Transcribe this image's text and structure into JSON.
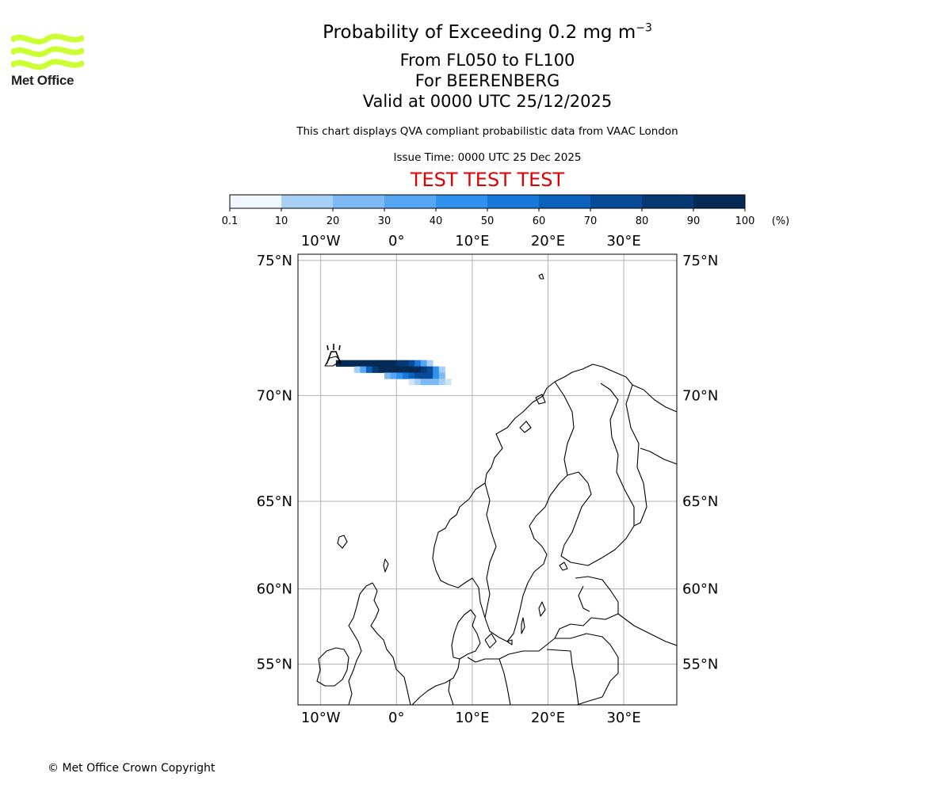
{
  "header": {
    "title_prefix": "Probability of Exceeding 0.2 mg m",
    "title_exponent": "−3",
    "level_range": "From FL050 to FL100",
    "volcano": "For BEERENBERG",
    "valid_time": "Valid at 0000 UTC 25/12/2025",
    "subtitle": "This chart displays QVA compliant probabilistic data from VAAC London",
    "issue_time": "Issue Time: 0000 UTC 25 Dec 2025",
    "test_banner": "TEST TEST TEST"
  },
  "logo": {
    "text": "Met Office",
    "color": "#ccff33"
  },
  "footer": {
    "copyright": "© Met Office Crown Copyright"
  },
  "colorbar": {
    "unit": "(%)",
    "ticks": [
      "0.1",
      "10",
      "20",
      "30",
      "40",
      "50",
      "60",
      "70",
      "80",
      "90",
      "100"
    ],
    "colors": [
      "#f1f7fe",
      "#cde4fa",
      "#a8d0f7",
      "#7dbaf3",
      "#55a6f0",
      "#2e92ee",
      "#1679d9",
      "#0b62bd",
      "#084b99",
      "#063873",
      "#052a55"
    ]
  },
  "map": {
    "lon_labels": [
      "10°W",
      "0°",
      "10°E",
      "20°E",
      "30°E"
    ],
    "lat_labels": [
      "75°N",
      "70°N",
      "65°N",
      "60°N",
      "55°N"
    ],
    "lons": [
      -10,
      0,
      10,
      20,
      30
    ],
    "lats": [
      75,
      70,
      65,
      60,
      55
    ],
    "extent": {
      "lon_min": -13,
      "lon_max": 37,
      "lat_min": 52,
      "lat_max": 75.2
    },
    "gridline_color": "#b0b0b0"
  },
  "chart_data": {
    "type": "heatmap",
    "title": "Probability of Exceeding 0.2 mg m−3",
    "subtitle": "From FL050 to FL100",
    "volcano": "BEERENBERG",
    "volcano_location": {
      "lon": -8.2,
      "lat": 71.0
    },
    "units": "%",
    "color_levels": [
      0.1,
      10,
      20,
      30,
      40,
      50,
      60,
      70,
      80,
      90,
      100
    ],
    "plume_cells": [
      {
        "lon": -8.0,
        "lat": 71.2,
        "prob": 95
      },
      {
        "lon": -7.2,
        "lat": 71.2,
        "prob": 95
      },
      {
        "lon": -6.4,
        "lat": 71.2,
        "prob": 95
      },
      {
        "lon": -5.6,
        "lat": 71.2,
        "prob": 95
      },
      {
        "lon": -4.8,
        "lat": 71.2,
        "prob": 92
      },
      {
        "lon": -4.0,
        "lat": 71.2,
        "prob": 92
      },
      {
        "lon": -3.2,
        "lat": 71.2,
        "prob": 92
      },
      {
        "lon": -2.4,
        "lat": 71.2,
        "prob": 92
      },
      {
        "lon": -1.6,
        "lat": 71.2,
        "prob": 92
      },
      {
        "lon": -0.8,
        "lat": 71.2,
        "prob": 90
      },
      {
        "lon": 0.0,
        "lat": 71.2,
        "prob": 85
      },
      {
        "lon": 0.8,
        "lat": 71.2,
        "prob": 80
      },
      {
        "lon": 1.6,
        "lat": 71.2,
        "prob": 72
      },
      {
        "lon": 2.4,
        "lat": 71.2,
        "prob": 55
      },
      {
        "lon": 3.2,
        "lat": 71.2,
        "prob": 35
      },
      {
        "lon": 4.0,
        "lat": 71.2,
        "prob": 15
      },
      {
        "lon": -5.6,
        "lat": 70.95,
        "prob": 15
      },
      {
        "lon": -4.8,
        "lat": 70.95,
        "prob": 35
      },
      {
        "lon": -4.0,
        "lat": 70.95,
        "prob": 65
      },
      {
        "lon": -3.2,
        "lat": 70.95,
        "prob": 85
      },
      {
        "lon": -2.4,
        "lat": 70.95,
        "prob": 92
      },
      {
        "lon": -1.6,
        "lat": 70.95,
        "prob": 92
      },
      {
        "lon": -0.8,
        "lat": 70.95,
        "prob": 95
      },
      {
        "lon": 0.0,
        "lat": 70.95,
        "prob": 95
      },
      {
        "lon": 0.8,
        "lat": 70.95,
        "prob": 95
      },
      {
        "lon": 1.6,
        "lat": 70.95,
        "prob": 92
      },
      {
        "lon": 2.4,
        "lat": 70.95,
        "prob": 92
      },
      {
        "lon": 3.2,
        "lat": 70.95,
        "prob": 88
      },
      {
        "lon": 4.0,
        "lat": 70.95,
        "prob": 75
      },
      {
        "lon": 4.8,
        "lat": 70.95,
        "prob": 45
      },
      {
        "lon": 5.6,
        "lat": 70.95,
        "prob": 15
      },
      {
        "lon": -1.6,
        "lat": 70.7,
        "prob": 25
      },
      {
        "lon": -0.8,
        "lat": 70.7,
        "prob": 35
      },
      {
        "lon": 0.0,
        "lat": 70.7,
        "prob": 45
      },
      {
        "lon": 0.8,
        "lat": 70.7,
        "prob": 55
      },
      {
        "lon": 1.6,
        "lat": 70.7,
        "prob": 65
      },
      {
        "lon": 2.4,
        "lat": 70.7,
        "prob": 75
      },
      {
        "lon": 3.2,
        "lat": 70.7,
        "prob": 78
      },
      {
        "lon": 4.0,
        "lat": 70.7,
        "prob": 72
      },
      {
        "lon": 4.8,
        "lat": 70.7,
        "prob": 45
      },
      {
        "lon": 5.6,
        "lat": 70.7,
        "prob": 25
      },
      {
        "lon": 1.6,
        "lat": 70.45,
        "prob": 8
      },
      {
        "lon": 2.4,
        "lat": 70.45,
        "prob": 15
      },
      {
        "lon": 3.2,
        "lat": 70.45,
        "prob": 25
      },
      {
        "lon": 4.0,
        "lat": 70.45,
        "prob": 25
      },
      {
        "lon": 4.8,
        "lat": 70.45,
        "prob": 20
      },
      {
        "lon": 5.6,
        "lat": 70.45,
        "prob": 15
      },
      {
        "lon": 6.4,
        "lat": 70.45,
        "prob": 5
      }
    ]
  }
}
